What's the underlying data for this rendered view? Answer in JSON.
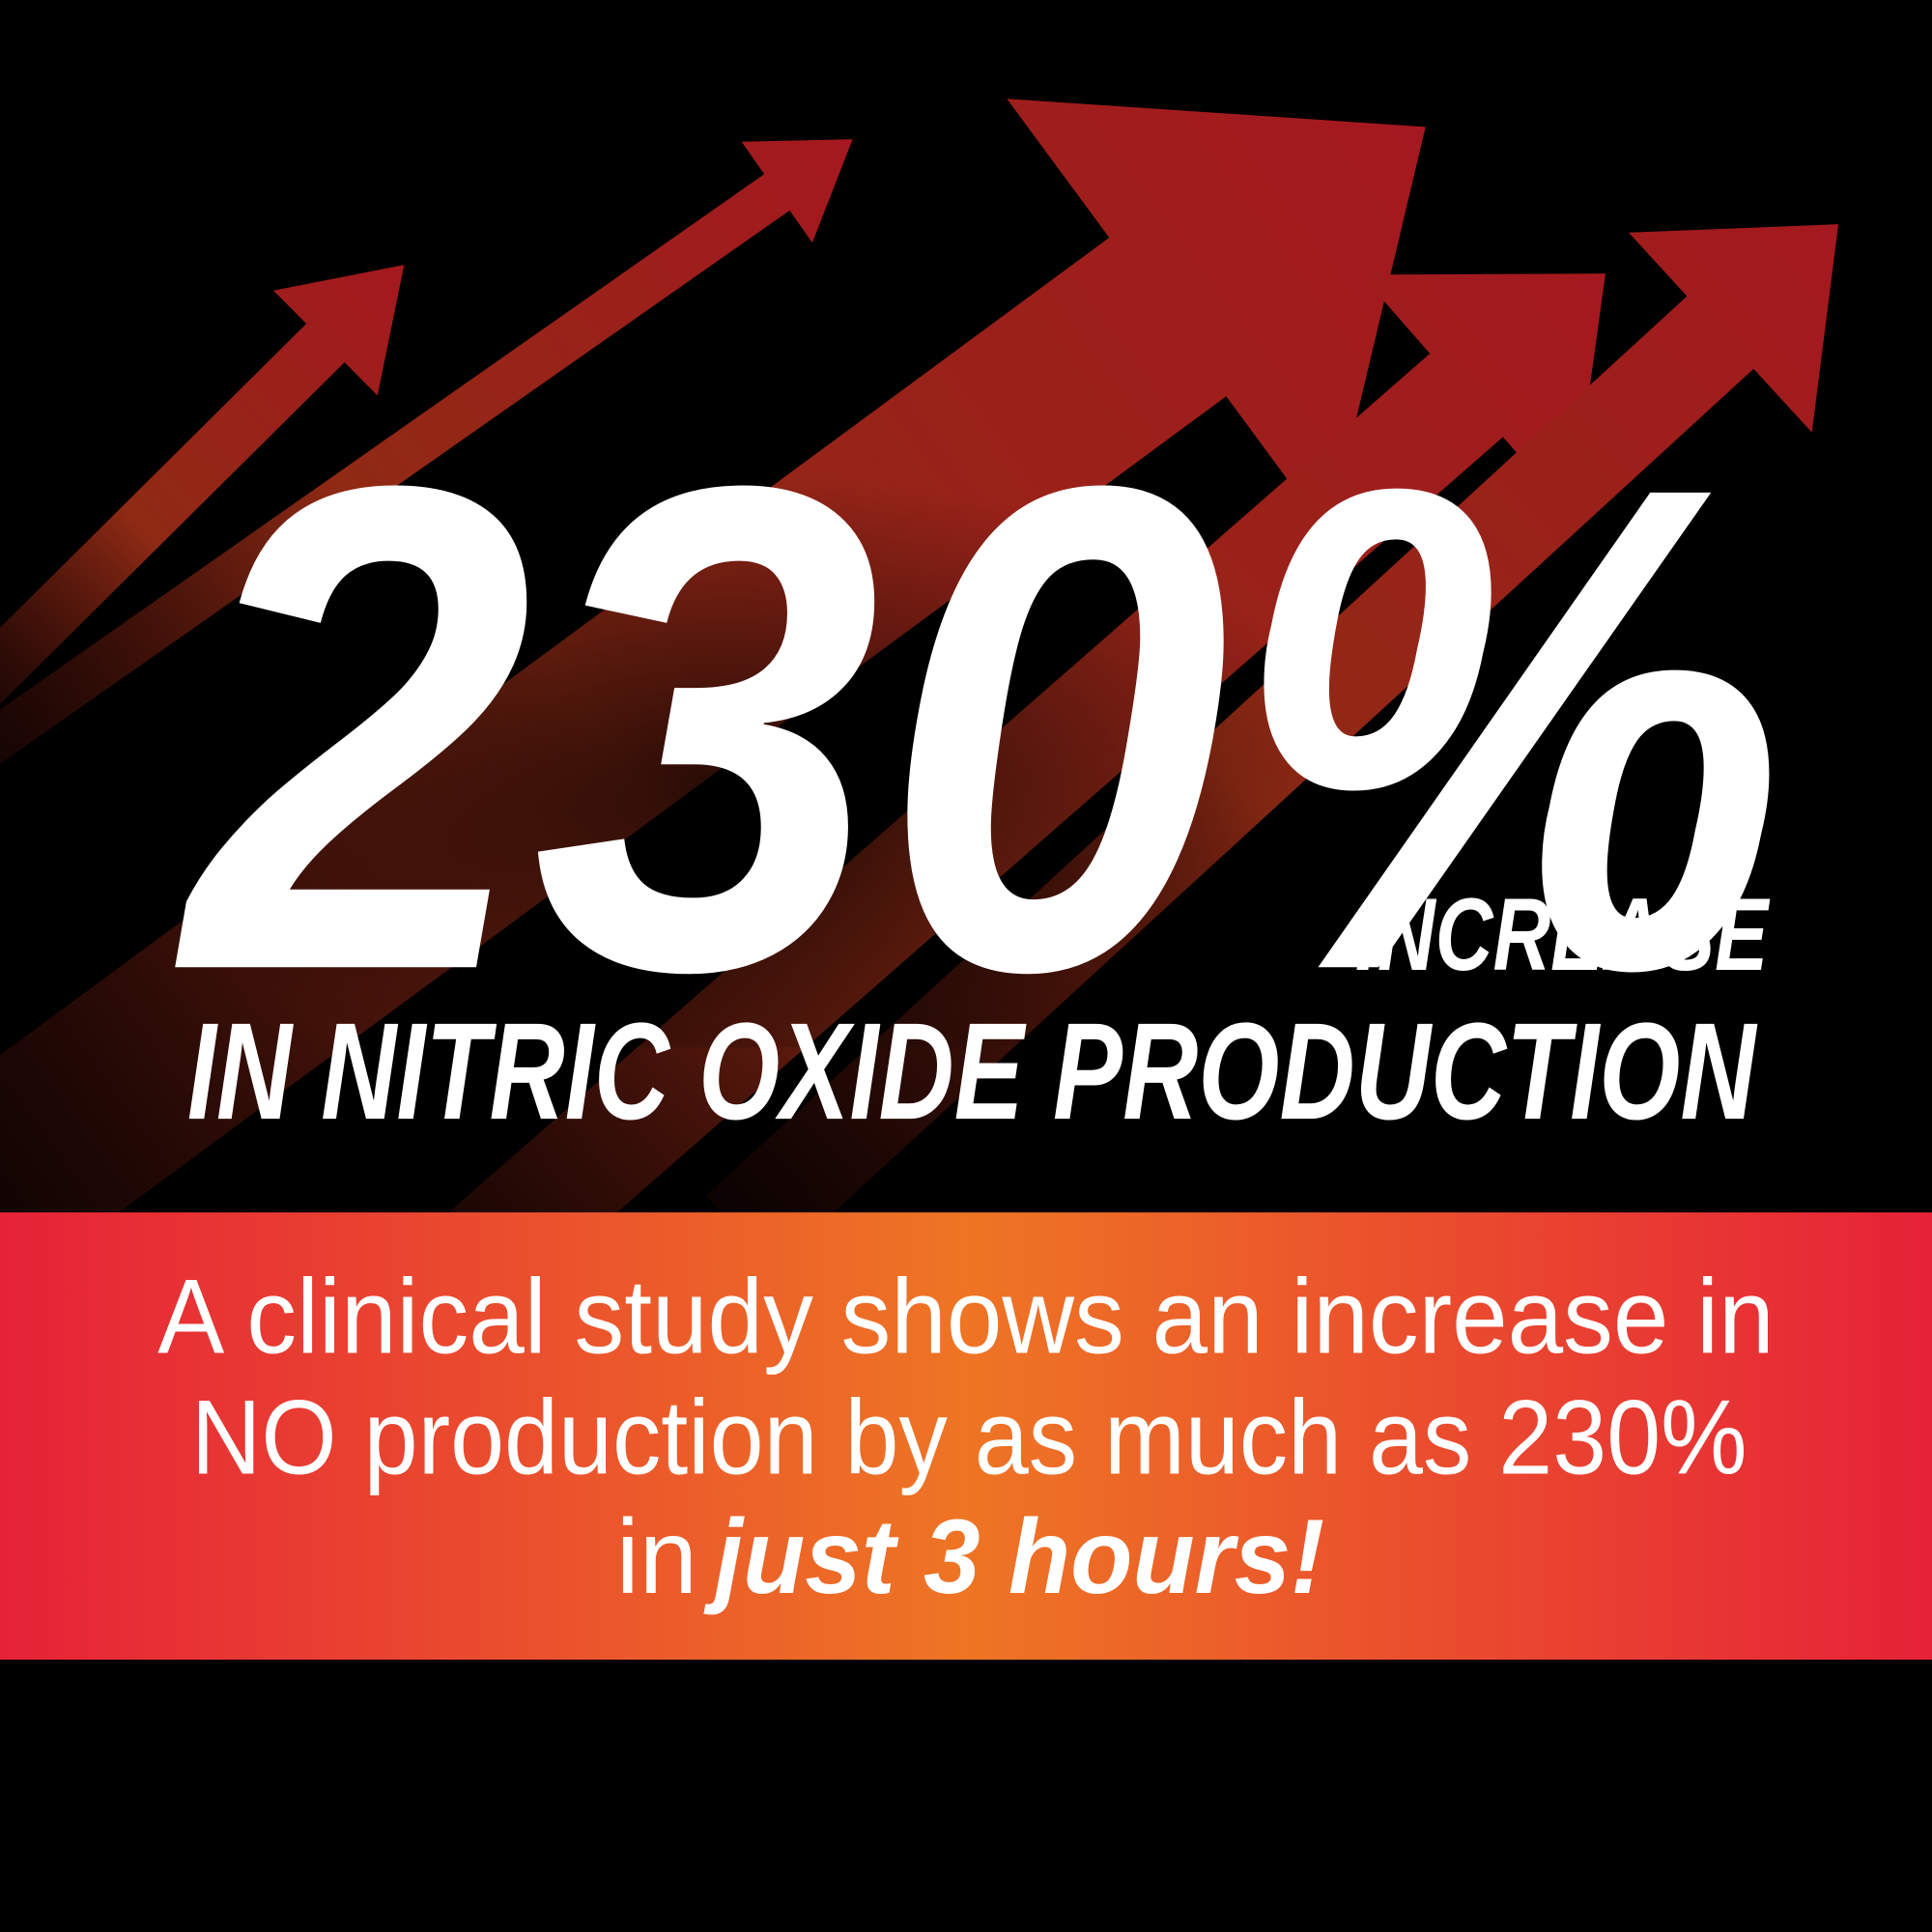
{
  "headline": {
    "figure": "230%",
    "label": "INCREASE",
    "subtitle": "IN NITRIC OXIDE PRODUCTION"
  },
  "banner": {
    "lines": [
      "A clinical study shows an increase in",
      "NO production by as much as 230%",
      "in"
    ],
    "emphasis": "just 3 hours!"
  }
}
